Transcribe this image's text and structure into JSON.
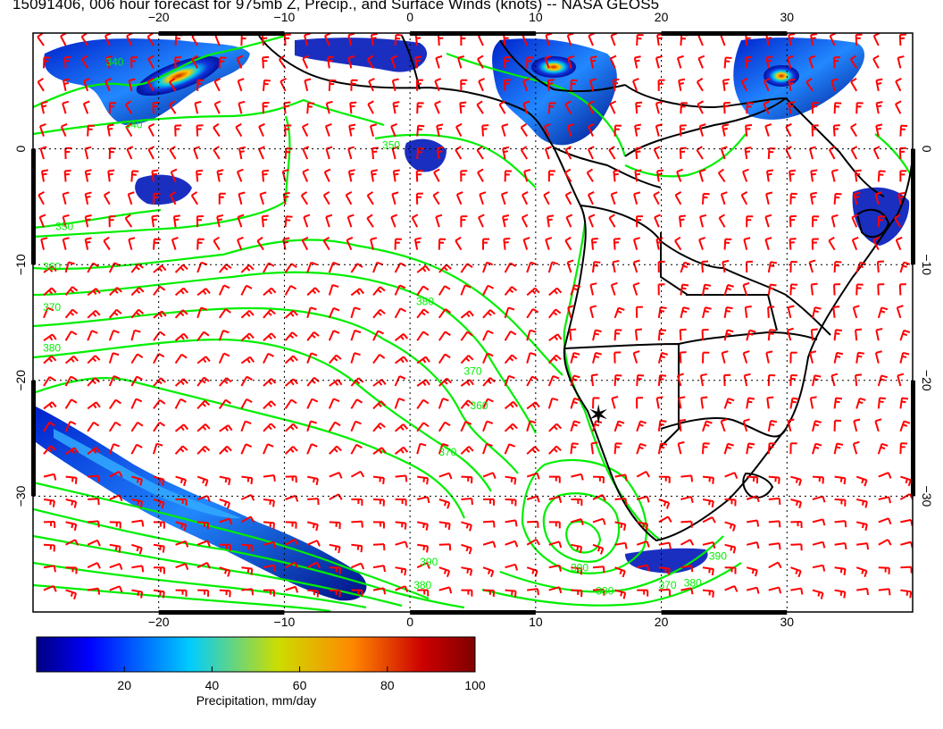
{
  "title": "15091406, 006 hour forecast for 975mb Z, Precip., and Surface Winds (knots) -- NASA GEOS5",
  "colors": {
    "contour": "#00ee00",
    "barb": "#ff0000",
    "coast": "#000000",
    "grid": "#000000"
  },
  "map": {
    "lon_range": [
      -30,
      40
    ],
    "lat_range": [
      -40,
      10
    ],
    "lon_ticks": [
      {
        "value": -20,
        "label": "−20"
      },
      {
        "value": -10,
        "label": "−10"
      },
      {
        "value": 0,
        "label": "0"
      },
      {
        "value": 10,
        "label": "10"
      },
      {
        "value": 20,
        "label": "20"
      },
      {
        "value": 30,
        "label": "30"
      }
    ],
    "lat_ticks": [
      {
        "value": 0,
        "label": "0"
      },
      {
        "value": -10,
        "label": "−10"
      },
      {
        "value": -20,
        "label": "−20"
      },
      {
        "value": -30,
        "label": "−30"
      }
    ],
    "contour_labels": [
      {
        "text": "340",
        "lon": -23.5,
        "lat": 7.2
      },
      {
        "text": "340",
        "lon": -22.0,
        "lat": 1.8
      },
      {
        "text": "350",
        "lon": -1.5,
        "lat": 0.0
      },
      {
        "text": "350",
        "lon": -27.5,
        "lat": -7.0
      },
      {
        "text": "360",
        "lon": -28.5,
        "lat": -10.5
      },
      {
        "text": "370",
        "lon": -28.5,
        "lat": -14.0
      },
      {
        "text": "380",
        "lon": -28.5,
        "lat": -17.5
      },
      {
        "text": "380",
        "lon": 1.2,
        "lat": -13.5
      },
      {
        "text": "370",
        "lon": 5.0,
        "lat": -19.5
      },
      {
        "text": "360",
        "lon": 5.5,
        "lat": -22.5
      },
      {
        "text": "370",
        "lon": 3.0,
        "lat": -26.5
      },
      {
        "text": "390",
        "lon": 1.5,
        "lat": -36.0
      },
      {
        "text": "380",
        "lon": 1.0,
        "lat": -38.0
      },
      {
        "text": "390",
        "lon": 13.5,
        "lat": -36.5
      },
      {
        "text": "380",
        "lon": 15.5,
        "lat": -38.5
      },
      {
        "text": "370",
        "lon": 20.5,
        "lat": -38.0
      },
      {
        "text": "380",
        "lon": 22.5,
        "lat": -37.8
      },
      {
        "text": "390",
        "lon": 24.5,
        "lat": -35.5
      }
    ],
    "marker": {
      "lon": 15.0,
      "lat": -23.0,
      "symbol": "✶"
    }
  },
  "colorbar": {
    "min": 0,
    "max": 100,
    "ticks": [
      {
        "value": 20,
        "label": "20"
      },
      {
        "value": 40,
        "label": "40"
      },
      {
        "value": 60,
        "label": "60"
      },
      {
        "value": 80,
        "label": "80"
      },
      {
        "value": 100,
        "label": "100"
      }
    ],
    "label": "Precipitation, mm/day"
  }
}
